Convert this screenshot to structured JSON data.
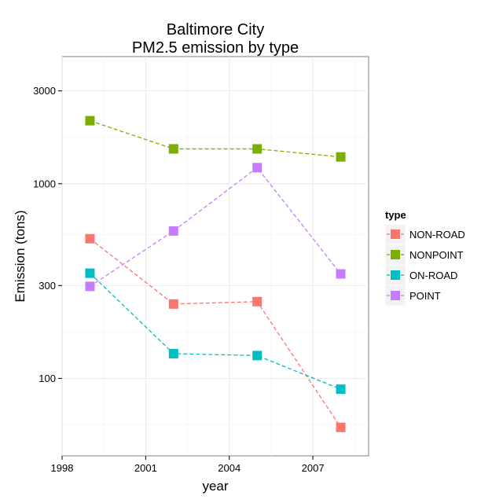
{
  "chart_data": {
    "type": "line",
    "title_line1": "Baltimore City",
    "title_line2": "PM2.5 emission by type",
    "xlabel": "year",
    "ylabel": "Emission (tons)",
    "y_scale": "log10",
    "xlim": [
      1998,
      2009
    ],
    "ylim": [
      40,
      4500
    ],
    "x_ticks": [
      1998,
      2001,
      2004,
      2007
    ],
    "y_ticks": [
      100,
      300,
      1000,
      3000
    ],
    "grid": true,
    "legend_title": "type",
    "legend_position": "right",
    "x": [
      1999,
      2002,
      2005,
      2008
    ],
    "series": [
      {
        "name": "NON-ROAD",
        "color": "#F8766D",
        "values": [
          522,
          241,
          248,
          56
        ]
      },
      {
        "name": "NONPOINT",
        "color": "#7CAE00",
        "values": [
          2108,
          1510,
          1510,
          1373
        ]
      },
      {
        "name": "ON-ROAD",
        "color": "#00BFC4",
        "values": [
          347,
          134,
          131,
          88
        ]
      },
      {
        "name": "POINT",
        "color": "#C77CFF",
        "values": [
          297,
          572,
          1210,
          344
        ]
      }
    ]
  }
}
